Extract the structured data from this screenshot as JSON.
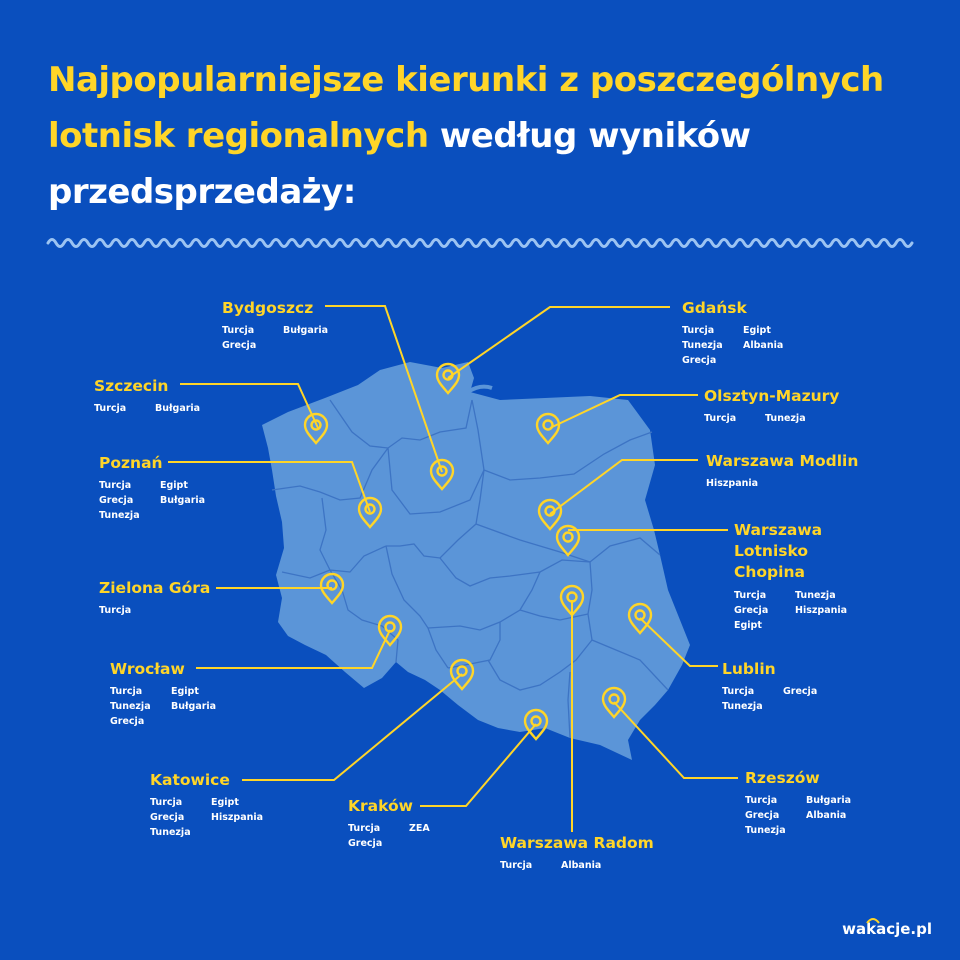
{
  "title": {
    "highlight": "Najpopularniejsze kierunki z poszczególnych lotnisk regionalnych",
    "rest": " według wyników przedsprzedaży:"
  },
  "colors": {
    "background": "#0a4fbe",
    "accent": "#ffd528",
    "map": "#5b95d8",
    "border": "#3d74c4"
  },
  "logo": "wakacje.pl",
  "cities": [
    {
      "id": "bydgoszcz",
      "name": "Bydgoszcz",
      "destinations": [
        "Turcja",
        "Bułgaria",
        "Grecja"
      ]
    },
    {
      "id": "gdansk",
      "name": "Gdańsk",
      "destinations": [
        "Turcja",
        "Egipt",
        "Tunezja",
        "Albania",
        "Grecja"
      ]
    },
    {
      "id": "szczecin",
      "name": "Szczecin",
      "destinations": [
        "Turcja",
        "Bułgaria"
      ]
    },
    {
      "id": "olsztyn",
      "name": "Olsztyn-Mazury",
      "destinations": [
        "Turcja",
        "Tunezja"
      ]
    },
    {
      "id": "poznan",
      "name": "Poznań",
      "destinations": [
        "Turcja",
        "Egipt",
        "Grecja",
        "Bułgaria",
        "Tunezja"
      ]
    },
    {
      "id": "modlin",
      "name": "Warszawa Modlin",
      "destinations": [
        "Hiszpania"
      ]
    },
    {
      "id": "chopin",
      "name": "Warszawa Lotnisko Chopina",
      "destinations": [
        "Turcja",
        "Tunezja",
        "Grecja",
        "Hiszpania",
        "Egipt"
      ]
    },
    {
      "id": "zielonagora",
      "name": "Zielona Góra",
      "destinations": [
        "Turcja"
      ]
    },
    {
      "id": "wroclaw",
      "name": "Wrocław",
      "destinations": [
        "Turcja",
        "Egipt",
        "Tunezja",
        "Bułgaria",
        "Grecja"
      ]
    },
    {
      "id": "lublin",
      "name": "Lublin",
      "destinations": [
        "Turcja",
        "Grecja",
        "Tunezja"
      ]
    },
    {
      "id": "katowice",
      "name": "Katowice",
      "destinations": [
        "Turcja",
        "Egipt",
        "Grecja",
        "Hiszpania",
        "Tunezja"
      ]
    },
    {
      "id": "krakow",
      "name": "Kraków",
      "destinations": [
        "Turcja",
        "ZEA",
        "Grecja"
      ]
    },
    {
      "id": "rzeszow",
      "name": "Rzeszów",
      "destinations": [
        "Turcja",
        "Bułgaria",
        "Grecja",
        "Albania",
        "Tunezja"
      ]
    },
    {
      "id": "radom",
      "name": "Warszawa Radom",
      "destinations": [
        "Turcja",
        "Albania"
      ]
    }
  ]
}
